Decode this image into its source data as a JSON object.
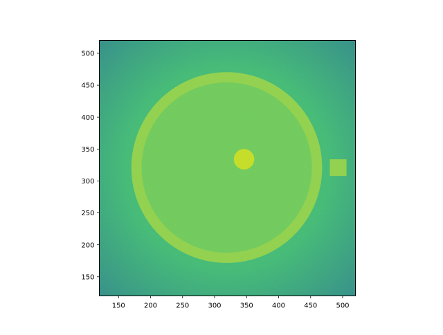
{
  "chart_data": {
    "type": "heatmap",
    "title": "",
    "xlabel": "",
    "ylabel": "",
    "xlim": [
      120,
      520
    ],
    "ylim": [
      120,
      520
    ],
    "xticks": [
      "150",
      "200",
      "250",
      "300",
      "350",
      "400",
      "450",
      "500"
    ],
    "yticks": [
      "150",
      "200",
      "250",
      "300",
      "350",
      "400",
      "450",
      "500"
    ],
    "colormap": "viridis",
    "grid": false,
    "colors": {
      "background_center": "#3cba78",
      "background_corner": "#2a8a8c",
      "phantom_interior": "#6ccb5c",
      "ring": "#8fd24c",
      "insert_disk": "#c6df22",
      "insert_square": "#8fd24c"
    },
    "features": [
      {
        "name": "ring",
        "shape": "annulus",
        "center": [
          319,
          321
        ],
        "outer_radius": 149,
        "inner_radius": 133
      },
      {
        "name": "disk",
        "shape": "circle",
        "center": [
          346,
          334
        ],
        "radius": 16
      },
      {
        "name": "square",
        "shape": "rect",
        "x_range": [
          480,
          506
        ],
        "y_range": [
          308,
          334
        ]
      }
    ]
  }
}
